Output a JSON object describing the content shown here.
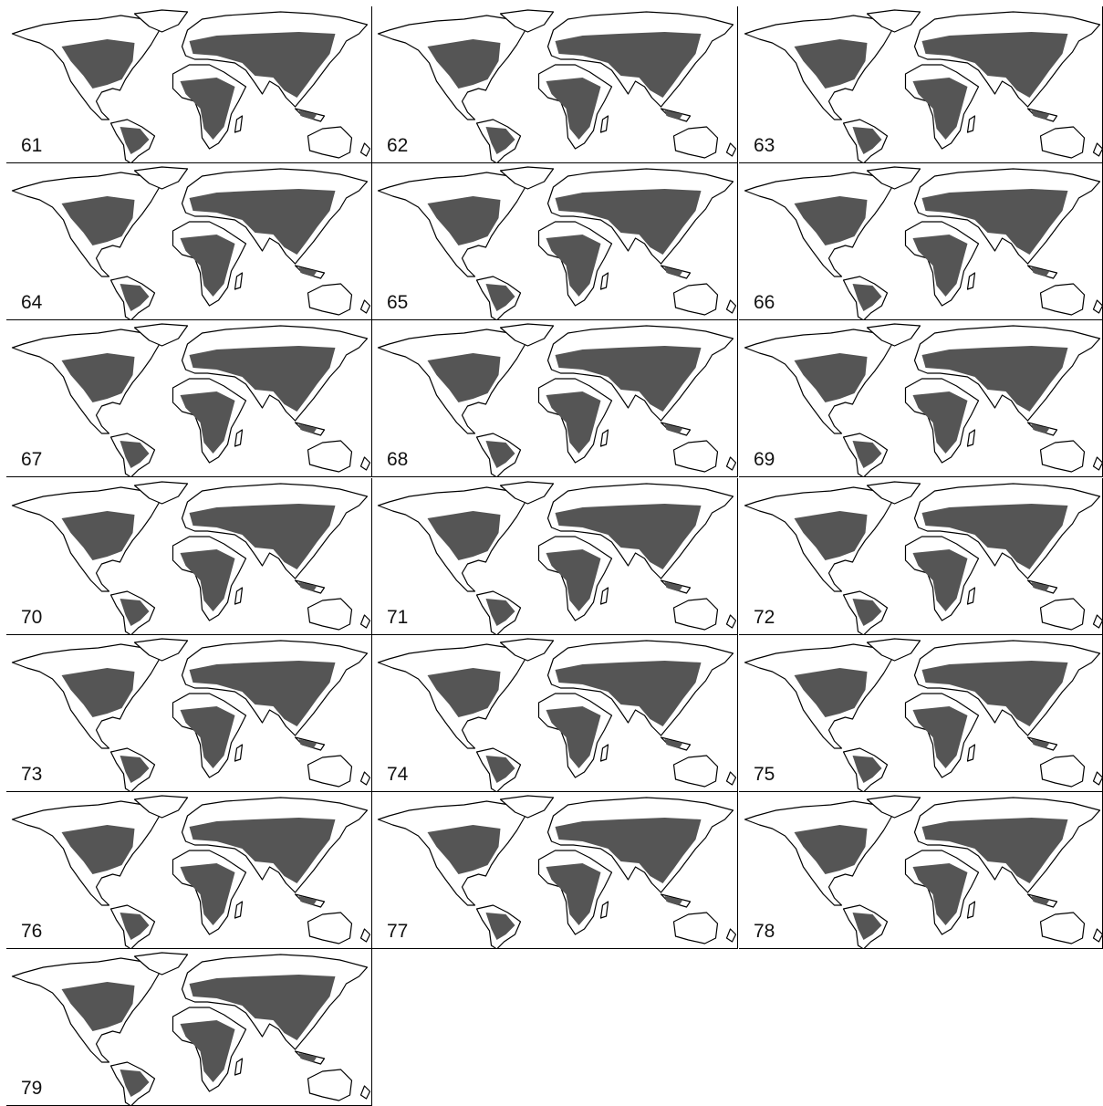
{
  "panels": [
    {
      "label": "61"
    },
    {
      "label": "62"
    },
    {
      "label": "63"
    },
    {
      "label": "64"
    },
    {
      "label": "65"
    },
    {
      "label": "66"
    },
    {
      "label": "67"
    },
    {
      "label": "68"
    },
    {
      "label": "69"
    },
    {
      "label": "70"
    },
    {
      "label": "71"
    },
    {
      "label": "72"
    },
    {
      "label": "73"
    },
    {
      "label": "74"
    },
    {
      "label": "75"
    },
    {
      "label": "76"
    },
    {
      "label": "77"
    },
    {
      "label": "78"
    },
    {
      "label": "79"
    }
  ]
}
